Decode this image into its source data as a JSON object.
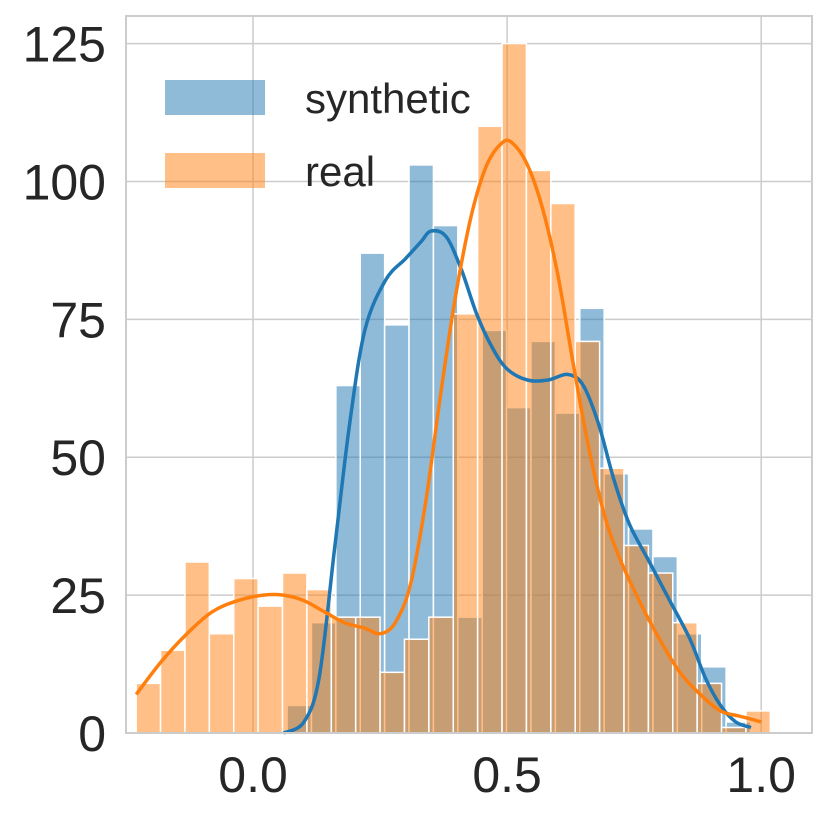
{
  "chart_data": {
    "type": "bar",
    "title": "",
    "xlabel": "",
    "ylabel": "",
    "xlim": [
      -0.25,
      1.1
    ],
    "ylim": [
      0,
      130
    ],
    "grid": true,
    "legend_position": "top-left",
    "x_ticks": [
      0.0,
      0.5,
      1.0
    ],
    "x_tick_labels": [
      "0.0",
      "0.5",
      "1.0"
    ],
    "y_ticks": [
      0,
      25,
      50,
      75,
      100,
      125
    ],
    "y_tick_labels": [
      "0",
      "25",
      "50",
      "75",
      "100",
      "125"
    ],
    "colors": {
      "synthetic": "#1f77b4",
      "real": "#ff7f0e",
      "grid": "#cccccc",
      "axis": "#cccccc"
    },
    "series": [
      {
        "name": "synthetic",
        "bins": [
          {
            "x0": 0.067,
            "x1": 0.115,
            "count": 5
          },
          {
            "x0": 0.115,
            "x1": 0.163,
            "count": 20
          },
          {
            "x0": 0.163,
            "x1": 0.211,
            "count": 63
          },
          {
            "x0": 0.211,
            "x1": 0.259,
            "count": 87
          },
          {
            "x0": 0.259,
            "x1": 0.307,
            "count": 74
          },
          {
            "x0": 0.307,
            "x1": 0.355,
            "count": 103
          },
          {
            "x0": 0.355,
            "x1": 0.403,
            "count": 92
          },
          {
            "x0": 0.403,
            "x1": 0.451,
            "count": 21
          },
          {
            "x0": 0.451,
            "x1": 0.499,
            "count": 73
          },
          {
            "x0": 0.499,
            "x1": 0.547,
            "count": 59
          },
          {
            "x0": 0.547,
            "x1": 0.595,
            "count": 71
          },
          {
            "x0": 0.595,
            "x1": 0.643,
            "count": 58
          },
          {
            "x0": 0.643,
            "x1": 0.691,
            "count": 77
          },
          {
            "x0": 0.691,
            "x1": 0.739,
            "count": 47
          },
          {
            "x0": 0.739,
            "x1": 0.787,
            "count": 37
          },
          {
            "x0": 0.787,
            "x1": 0.835,
            "count": 32
          },
          {
            "x0": 0.835,
            "x1": 0.883,
            "count": 18
          },
          {
            "x0": 0.883,
            "x1": 0.931,
            "count": 12
          },
          {
            "x0": 0.931,
            "x1": 0.979,
            "count": 2
          }
        ],
        "kde": [
          [
            0.06,
            0
          ],
          [
            0.1,
            2
          ],
          [
            0.13,
            10
          ],
          [
            0.16,
            33
          ],
          [
            0.19,
            56
          ],
          [
            0.22,
            73
          ],
          [
            0.26,
            82
          ],
          [
            0.3,
            86
          ],
          [
            0.33,
            89
          ],
          [
            0.35,
            91
          ],
          [
            0.38,
            90
          ],
          [
            0.41,
            84
          ],
          [
            0.44,
            76
          ],
          [
            0.47,
            70
          ],
          [
            0.5,
            66
          ],
          [
            0.54,
            64
          ],
          [
            0.58,
            64
          ],
          [
            0.62,
            65
          ],
          [
            0.65,
            63
          ],
          [
            0.68,
            56
          ],
          [
            0.71,
            46
          ],
          [
            0.74,
            38
          ],
          [
            0.78,
            31
          ],
          [
            0.82,
            24
          ],
          [
            0.86,
            17
          ],
          [
            0.89,
            10
          ],
          [
            0.92,
            5
          ],
          [
            0.95,
            2
          ],
          [
            0.98,
            1
          ]
        ]
      },
      {
        "name": "real",
        "bins": [
          {
            "x0": -0.23,
            "x1": -0.182,
            "count": 9
          },
          {
            "x0": -0.182,
            "x1": -0.134,
            "count": 15
          },
          {
            "x0": -0.134,
            "x1": -0.086,
            "count": 31
          },
          {
            "x0": -0.086,
            "x1": -0.038,
            "count": 18
          },
          {
            "x0": -0.038,
            "x1": 0.01,
            "count": 28
          },
          {
            "x0": 0.01,
            "x1": 0.058,
            "count": 23
          },
          {
            "x0": 0.058,
            "x1": 0.106,
            "count": 29
          },
          {
            "x0": 0.106,
            "x1": 0.154,
            "count": 26
          },
          {
            "x0": 0.154,
            "x1": 0.202,
            "count": 21
          },
          {
            "x0": 0.202,
            "x1": 0.25,
            "count": 21
          },
          {
            "x0": 0.25,
            "x1": 0.298,
            "count": 11
          },
          {
            "x0": 0.298,
            "x1": 0.346,
            "count": 17
          },
          {
            "x0": 0.346,
            "x1": 0.394,
            "count": 21
          },
          {
            "x0": 0.394,
            "x1": 0.442,
            "count": 76
          },
          {
            "x0": 0.442,
            "x1": 0.49,
            "count": 110
          },
          {
            "x0": 0.49,
            "x1": 0.538,
            "count": 125
          },
          {
            "x0": 0.538,
            "x1": 0.586,
            "count": 102
          },
          {
            "x0": 0.586,
            "x1": 0.634,
            "count": 96
          },
          {
            "x0": 0.634,
            "x1": 0.682,
            "count": 71
          },
          {
            "x0": 0.682,
            "x1": 0.73,
            "count": 48
          },
          {
            "x0": 0.73,
            "x1": 0.778,
            "count": 34
          },
          {
            "x0": 0.778,
            "x1": 0.826,
            "count": 29
          },
          {
            "x0": 0.826,
            "x1": 0.874,
            "count": 20
          },
          {
            "x0": 0.874,
            "x1": 0.922,
            "count": 9
          },
          {
            "x0": 0.922,
            "x1": 0.97,
            "count": 1
          },
          {
            "x0": 0.97,
            "x1": 1.018,
            "count": 4
          }
        ],
        "kde": [
          [
            -0.23,
            7
          ],
          [
            -0.18,
            13
          ],
          [
            -0.13,
            18
          ],
          [
            -0.08,
            22
          ],
          [
            -0.03,
            24
          ],
          [
            0.02,
            25
          ],
          [
            0.06,
            25
          ],
          [
            0.1,
            24
          ],
          [
            0.14,
            22
          ],
          [
            0.18,
            20
          ],
          [
            0.22,
            19
          ],
          [
            0.25,
            18
          ],
          [
            0.28,
            20
          ],
          [
            0.31,
            27
          ],
          [
            0.34,
            42
          ],
          [
            0.37,
            62
          ],
          [
            0.4,
            80
          ],
          [
            0.43,
            94
          ],
          [
            0.46,
            103
          ],
          [
            0.49,
            107
          ],
          [
            0.51,
            107
          ],
          [
            0.54,
            103
          ],
          [
            0.57,
            95
          ],
          [
            0.6,
            83
          ],
          [
            0.63,
            67
          ],
          [
            0.66,
            52
          ],
          [
            0.69,
            40
          ],
          [
            0.72,
            32
          ],
          [
            0.76,
            24
          ],
          [
            0.8,
            17
          ],
          [
            0.84,
            11
          ],
          [
            0.88,
            7
          ],
          [
            0.92,
            4
          ],
          [
            0.96,
            3
          ],
          [
            1.0,
            2
          ]
        ]
      }
    ]
  }
}
